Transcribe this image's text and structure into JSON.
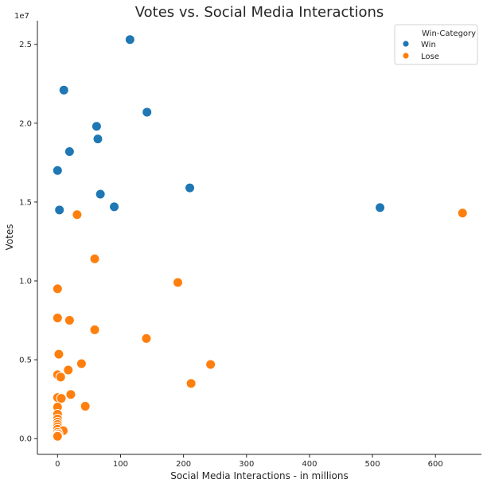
{
  "chart_data": {
    "type": "scatter",
    "title": "Votes vs. Social Media Interactions",
    "xlabel": "Social Media Interactions - in millions",
    "ylabel": "Votes",
    "y_offset_label": "1e7",
    "xlim": [
      -32,
      673
    ],
    "ylim": [
      -0.1,
      2.65
    ],
    "x_ticks": [
      0,
      100,
      200,
      300,
      400,
      500,
      600
    ],
    "x_tick_labels": [
      "0",
      "100",
      "200",
      "300",
      "400",
      "500",
      "600"
    ],
    "y_ticks": [
      0.0,
      0.5,
      1.0,
      1.5,
      2.0,
      2.5
    ],
    "y_tick_labels": [
      "0.0",
      "0.5",
      "1.0",
      "1.5",
      "2.0",
      "2.5"
    ],
    "grid": false,
    "legend": {
      "title": "Win-Category",
      "placement": "top-right",
      "entries": [
        "Win",
        "Lose"
      ]
    },
    "series": [
      {
        "name": "Win",
        "color": "#1f77b4",
        "points": [
          [
            115,
            2.53
          ],
          [
            10,
            2.21
          ],
          [
            142,
            2.07
          ],
          [
            62,
            1.98
          ],
          [
            64,
            1.9
          ],
          [
            19,
            1.82
          ],
          [
            0,
            1.7
          ],
          [
            210,
            1.59
          ],
          [
            68,
            1.55
          ],
          [
            90,
            1.47
          ],
          [
            3,
            1.45
          ],
          [
            512,
            1.465
          ]
        ]
      },
      {
        "name": "Lose",
        "color": "#ff7f0e",
        "points": [
          [
            643,
            1.43
          ],
          [
            31,
            1.42
          ],
          [
            59,
            1.14
          ],
          [
            191,
            0.99
          ],
          [
            0,
            0.95
          ],
          [
            0,
            0.765
          ],
          [
            19,
            0.75
          ],
          [
            59,
            0.69
          ],
          [
            141,
            0.635
          ],
          [
            2,
            0.535
          ],
          [
            38,
            0.475
          ],
          [
            243,
            0.47
          ],
          [
            17,
            0.435
          ],
          [
            0,
            0.405
          ],
          [
            5,
            0.39
          ],
          [
            212,
            0.35
          ],
          [
            21,
            0.28
          ],
          [
            0,
            0.26
          ],
          [
            6,
            0.255
          ],
          [
            44,
            0.205
          ],
          [
            0,
            0.2
          ],
          [
            0,
            0.155
          ],
          [
            0,
            0.125
          ],
          [
            0,
            0.105
          ],
          [
            0,
            0.09
          ],
          [
            0,
            0.075
          ],
          [
            0,
            0.06
          ],
          [
            9,
            0.05
          ],
          [
            0,
            0.04
          ],
          [
            1,
            0.03
          ],
          [
            0,
            0.02
          ],
          [
            0,
            0.015
          ]
        ]
      }
    ]
  }
}
